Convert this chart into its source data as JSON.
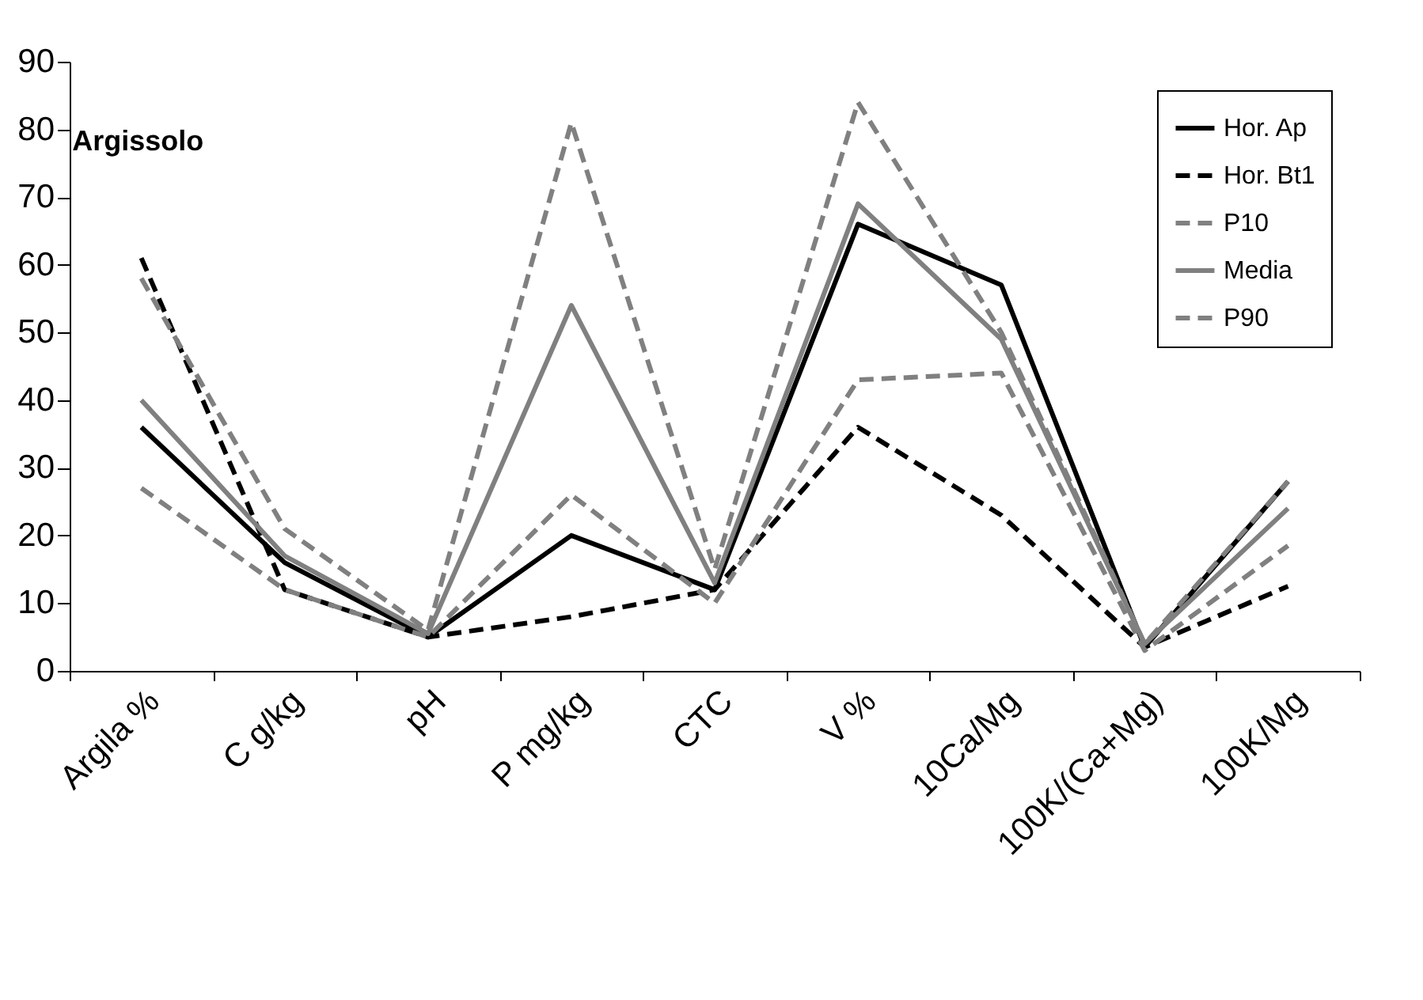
{
  "chart_data": {
    "type": "line",
    "title": "Argissolo",
    "categories": [
      "Argila %",
      "C g/kg",
      "pH",
      "P mg/kg",
      "CTC",
      "V %",
      "10Ca/Mg",
      "100K/(Ca+Mg)",
      "100K/Mg"
    ],
    "series": [
      {
        "name": "Hor. Ap",
        "color": "#000000",
        "line_style": "solid",
        "values": [
          36,
          16,
          5,
          20,
          12,
          66,
          57,
          3.5,
          28
        ]
      },
      {
        "name": "Hor. Bt1",
        "color": "#000000",
        "line_style": "dashed",
        "values": [
          61,
          12,
          5,
          8,
          12,
          36,
          23,
          3.5,
          12.5
        ]
      },
      {
        "name": "P10",
        "color": "#808080",
        "line_style": "dashed",
        "values": [
          27,
          12,
          5,
          26,
          10,
          43,
          44,
          3,
          18.5
        ]
      },
      {
        "name": "Media",
        "color": "#808080",
        "line_style": "solid",
        "values": [
          40,
          17,
          5.5,
          54,
          13,
          69,
          49,
          4,
          24
        ]
      },
      {
        "name": "P90",
        "color": "#808080",
        "line_style": "dashed",
        "values": [
          58,
          21,
          6,
          81,
          15,
          84,
          50,
          4,
          28
        ]
      }
    ],
    "ylim": [
      0,
      90
    ],
    "yticks": [
      0,
      10,
      20,
      30,
      40,
      50,
      60,
      70,
      80,
      90
    ],
    "grid": false,
    "legend": "top right",
    "marker": "none"
  }
}
